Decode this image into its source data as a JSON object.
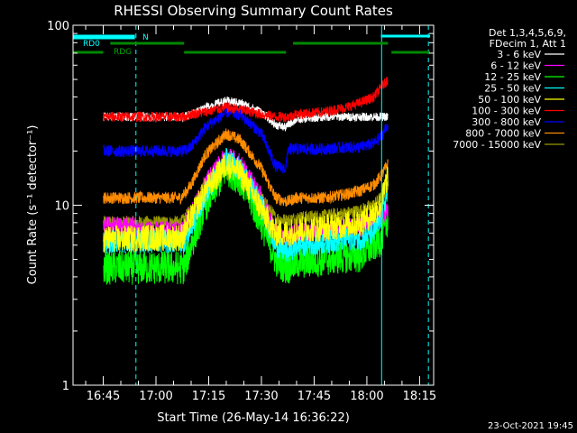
{
  "chart_data": {
    "type": "line",
    "title": "RHESSI Observing Summary Count Rates",
    "xlabel": "Start Time (26-May-14 16:36:22)",
    "ylabel": "Count Rate (s⁻¹ detector⁻¹)",
    "yscale": "log",
    "ylim": [
      1,
      100
    ],
    "xlim_minutes_from_1630": [
      6.4,
      109
    ],
    "x_ticks": [
      "16:45",
      "17:00",
      "17:15",
      "17:30",
      "17:45",
      "18:00",
      "18:15"
    ],
    "x_tick_minutes": [
      15,
      30,
      45,
      60,
      75,
      90,
      105
    ],
    "y_ticks": [
      "1",
      "10",
      "100"
    ],
    "y_tick_values": [
      1,
      10,
      100
    ],
    "grid": false,
    "legend_position": "right",
    "legend_header": [
      "Det 1,3,4,5,6,9,",
      "FDecim 1, Att 1"
    ],
    "timestamp": "23-Oct-2021 19:45",
    "flags": [
      {
        "label": "RD0",
        "color": "#00ffff",
        "segments": [
          [
            6.4,
            24
          ]
        ]
      },
      {
        "label": "N",
        "color": "#00ffff",
        "segments": [
          [
            6.4,
            24
          ],
          [
            94,
            108
          ]
        ]
      },
      {
        "label": "RDG",
        "color": "#008800",
        "segments": [
          [
            6.4,
            15
          ],
          [
            17,
            38
          ],
          [
            38,
            67
          ],
          [
            69,
            96
          ],
          [
            97,
            108
          ]
        ]
      }
    ],
    "vlines": [
      {
        "x": 24.3,
        "style": "dashed",
        "color": "#00ffff"
      },
      {
        "x": 94.2,
        "style": "solid",
        "color": "#00ffff"
      },
      {
        "x": 107.5,
        "style": "dashed",
        "color": "#00ffff"
      }
    ],
    "knots_minutes": [
      14.5,
      15,
      24,
      24.5,
      37,
      38,
      40,
      44,
      50,
      54,
      60,
      64,
      67,
      67.5,
      70,
      78,
      84,
      88,
      92,
      94,
      96,
      96.5
    ],
    "series": [
      {
        "name": "3 - 6 keV",
        "color": "#ffffff",
        "noise": 0.025,
        "values": [
          null,
          31,
          31,
          31,
          31,
          31,
          32,
          35,
          38,
          37,
          33,
          28,
          27,
          28,
          30,
          31,
          31,
          31,
          31,
          31,
          31,
          null
        ]
      },
      {
        "name": "6 - 12 keV",
        "color": "#ff00ff",
        "noise": 0.06,
        "values": [
          null,
          7.6,
          7.6,
          7.2,
          7.2,
          7.7,
          9,
          13,
          19,
          17,
          11,
          7,
          6.5,
          6.5,
          7,
          7.2,
          7.5,
          7.5,
          8,
          8.5,
          9.5,
          null
        ]
      },
      {
        "name": "12 - 25 keV",
        "color": "#00ff00",
        "noise": 0.1,
        "values": [
          null,
          4.5,
          4.5,
          4.5,
          4.5,
          4.5,
          6,
          10,
          16,
          14,
          8,
          5,
          4.5,
          4.5,
          4.8,
          5,
          5.2,
          5.2,
          6,
          6.5,
          8.5,
          null
        ]
      },
      {
        "name": "25 - 50 keV",
        "color": "#00ffff",
        "noise": 0.07,
        "values": [
          null,
          6.3,
          6.3,
          6.3,
          6.3,
          6.3,
          7.5,
          11.5,
          18,
          16,
          10,
          6,
          5.5,
          5.5,
          6,
          6.2,
          6.5,
          6.5,
          7,
          8.5,
          12,
          null
        ]
      },
      {
        "name": "50 - 100 keV",
        "color": "#ffff00",
        "noise": 0.08,
        "values": [
          null,
          6.5,
          6.5,
          6.6,
          6.6,
          7,
          8.5,
          12,
          17,
          15,
          9.5,
          7,
          7,
          7,
          7.3,
          7.5,
          7.8,
          8,
          9,
          10,
          15,
          null
        ]
      },
      {
        "name": "100 - 300 keV",
        "color": "#ff0000",
        "noise": 0.03,
        "values": [
          null,
          31,
          31,
          31,
          31,
          31,
          32,
          33,
          35,
          34,
          32,
          31,
          31,
          31,
          32,
          33,
          35,
          37,
          40,
          45,
          50,
          null
        ]
      },
      {
        "name": "300 - 800 keV",
        "color": "#0000ff",
        "noise": 0.035,
        "values": [
          null,
          20,
          20,
          20,
          20,
          20,
          21,
          27,
          33,
          32,
          25,
          16.5,
          16,
          20.5,
          20.5,
          20.5,
          21,
          21,
          22,
          24,
          28,
          null
        ]
      },
      {
        "name": "800 - 7000 keV",
        "color": "#ff8c00",
        "noise": 0.035,
        "values": [
          null,
          11,
          11,
          11,
          11,
          11.5,
          13,
          19,
          25,
          23,
          16,
          11,
          10.5,
          10.5,
          11,
          11,
          11.5,
          12,
          13,
          14.5,
          17,
          null
        ]
      },
      {
        "name": "7000 - 15000 keV",
        "color": "#999900",
        "noise": 0.04,
        "values": [
          null,
          8,
          8,
          8,
          8,
          8.3,
          9.5,
          13,
          16,
          15,
          11,
          8.5,
          8.2,
          8.2,
          8.5,
          8.7,
          9,
          9.3,
          10,
          11,
          13,
          null
        ]
      }
    ]
  }
}
